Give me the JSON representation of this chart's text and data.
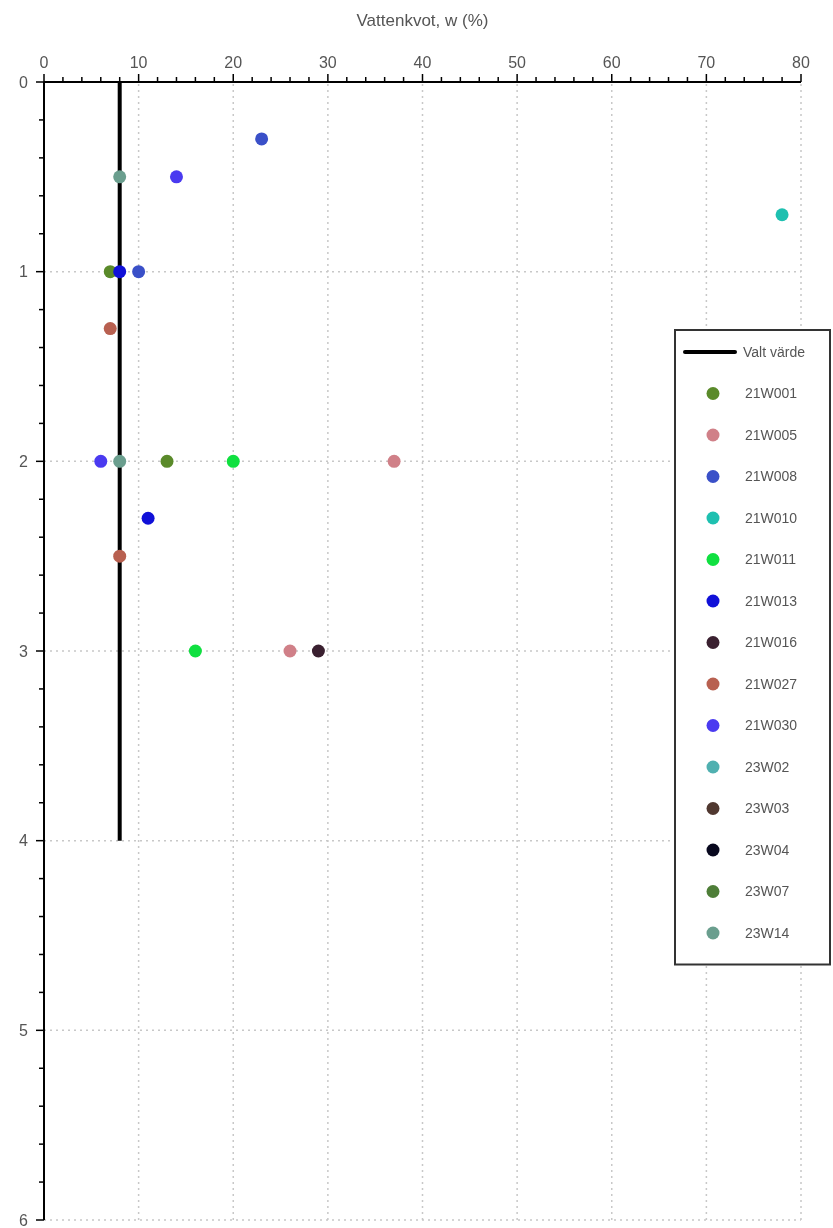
{
  "chart_data": {
    "type": "scatter",
    "xlabel": "Vattenkvot, w (%)",
    "xlim": [
      0,
      80
    ],
    "xticks": [
      0,
      {
        "value": 2,
        "label": null
      },
      {
        "value": 4,
        "label": null
      },
      {
        "value": 6,
        "label": null
      },
      {
        "value": 8,
        "label": null
      },
      10,
      {
        "value": 12,
        "label": null
      },
      {
        "value": 14,
        "label": null
      },
      {
        "value": 16,
        "label": null
      },
      {
        "value": 18,
        "label": null
      },
      20,
      {
        "value": 22,
        "label": null
      },
      {
        "value": 24,
        "label": null
      },
      {
        "value": 26,
        "label": null
      },
      {
        "value": 28,
        "label": null
      },
      30,
      {
        "value": 32,
        "label": null
      },
      {
        "value": 34,
        "label": null
      },
      {
        "value": 36,
        "label": null
      },
      {
        "value": 38,
        "label": null
      },
      40,
      {
        "value": 42,
        "label": null
      },
      {
        "value": 44,
        "label": null
      },
      {
        "value": 46,
        "label": null
      },
      {
        "value": 48,
        "label": null
      },
      50,
      {
        "value": 52,
        "label": null
      },
      {
        "value": 54,
        "label": null
      },
      {
        "value": 56,
        "label": null
      },
      {
        "value": 58,
        "label": null
      },
      60,
      {
        "value": 62,
        "label": null
      },
      {
        "value": 64,
        "label": null
      },
      {
        "value": 66,
        "label": null
      },
      {
        "value": 68,
        "label": null
      },
      70,
      {
        "value": 72,
        "label": null
      },
      {
        "value": 74,
        "label": null
      },
      {
        "value": 76,
        "label": null
      },
      {
        "value": 78,
        "label": null
      },
      80
    ],
    "ylim": [
      6,
      0
    ],
    "yticks": [
      0,
      {
        "value": 0.2,
        "label": null
      },
      {
        "value": 0.4,
        "label": null
      },
      {
        "value": 0.6,
        "label": null
      },
      {
        "value": 0.8,
        "label": null
      },
      1,
      {
        "value": 1.2,
        "label": null
      },
      {
        "value": 1.4,
        "label": null
      },
      {
        "value": 1.6,
        "label": null
      },
      {
        "value": 1.8,
        "label": null
      },
      2,
      {
        "value": 2.2,
        "label": null
      },
      {
        "value": 2.4,
        "label": null
      },
      {
        "value": 2.6,
        "label": null
      },
      {
        "value": 2.8,
        "label": null
      },
      3,
      {
        "value": 3.2,
        "label": null
      },
      {
        "value": 3.4,
        "label": null
      },
      {
        "value": 3.6,
        "label": null
      },
      {
        "value": 3.8,
        "label": null
      },
      4,
      {
        "value": 4.2,
        "label": null
      },
      {
        "value": 4.4,
        "label": null
      },
      {
        "value": 4.6,
        "label": null
      },
      {
        "value": 4.8,
        "label": null
      },
      5,
      {
        "value": 5.2,
        "label": null
      },
      {
        "value": 5.4,
        "label": null
      },
      {
        "value": 5.6,
        "label": null
      },
      {
        "value": 5.8,
        "label": null
      },
      6
    ],
    "grid": true,
    "legend": "right",
    "marker": "circle",
    "series": [
      {
        "name": "Valt värde",
        "type": "line",
        "marker": "none",
        "color": "#000000",
        "x": [
          8,
          8
        ],
        "values": [
          0,
          4
        ]
      },
      {
        "name": "21W001",
        "color": "#5a8a2a",
        "x": [
          7,
          13
        ],
        "values": [
          1,
          2
        ]
      },
      {
        "name": "21W005",
        "color": "#d08088",
        "x": [
          37,
          26
        ],
        "values": [
          2,
          3
        ]
      },
      {
        "name": "21W008",
        "color": "#3a50c8",
        "x": [
          23,
          10
        ],
        "values": [
          0.3,
          1
        ]
      },
      {
        "name": "21W010",
        "color": "#1ec0b0",
        "x": [
          78
        ],
        "values": [
          0.7
        ]
      },
      {
        "name": "21W011",
        "color": "#10e040",
        "x": [
          20,
          16
        ],
        "values": [
          2,
          3
        ]
      },
      {
        "name": "21W013",
        "color": "#1010d8",
        "x": [
          8,
          11
        ],
        "values": [
          1,
          2.3
        ]
      },
      {
        "name": "21W016",
        "color": "#3a2030",
        "x": [
          29
        ],
        "values": [
          3
        ]
      },
      {
        "name": "21W027",
        "color": "#b86050",
        "x": [
          7,
          8
        ],
        "values": [
          1.3,
          2.5
        ]
      },
      {
        "name": "21W030",
        "color": "#4a3af0",
        "x": [
          14,
          6
        ],
        "values": [
          0.5,
          2
        ]
      },
      {
        "name": "23W02",
        "color": "#50b0b0"
      },
      {
        "name": "23W03",
        "color": "#503830"
      },
      {
        "name": "23W04",
        "color": "#08081e"
      },
      {
        "name": "23W07",
        "color": "#4e7e38"
      },
      {
        "name": "23W14",
        "color": "#6a9e8e",
        "x": [
          8,
          8
        ],
        "values": [
          0.5,
          2
        ]
      }
    ]
  }
}
